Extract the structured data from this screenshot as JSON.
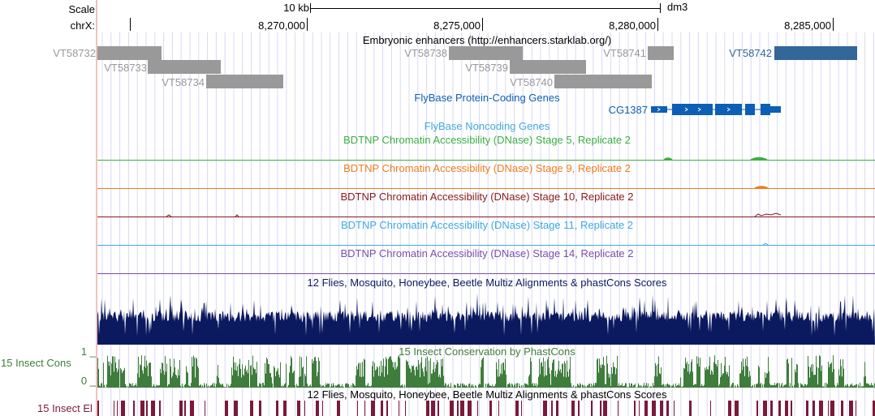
{
  "ruler": {
    "scale_label": "Scale",
    "scale_value": "10 kb",
    "assembly": "dm3",
    "chrom_label": "chrX:",
    "positions": [
      "8,270,000",
      "8,275,000",
      "8,280,000",
      "8,285,000"
    ]
  },
  "tracks": {
    "enhancers": {
      "title": "Embryonic enhancers (http://enhancers.starklab.org/)",
      "items": [
        "VT58732",
        "VT58733",
        "VT58734",
        "VT58738",
        "VT58739",
        "VT58740",
        "VT58741",
        "VT58742"
      ]
    },
    "protein_genes": {
      "title": "FlyBase Protein-Coding Genes",
      "gene": "CG1387"
    },
    "noncoding_genes": {
      "title": "FlyBase Noncoding Genes"
    },
    "dnase": [
      {
        "title": "BDTNP Chromatin Accessibility (DNase) Stage 5, Replicate 2",
        "color": "#3cb043"
      },
      {
        "title": "BDTNP Chromatin Accessibility (DNase) Stage 9, Replicate 2",
        "color": "#f07c1e"
      },
      {
        "title": "BDTNP Chromatin Accessibility (DNase) Stage 10, Replicate 2",
        "color": "#8b1a1a"
      },
      {
        "title": "BDTNP Chromatin Accessibility (DNase) Stage 11, Replicate 2",
        "color": "#3fa9dc"
      },
      {
        "title": "BDTNP Chromatin Accessibility (DNase) Stage 14, Replicate 2",
        "color": "#7a4fa8"
      }
    ],
    "multiz": {
      "title": "12 Flies, Mosquito, Honeybee, Beetle Multiz Alignments & phastCons Scores"
    },
    "cons": {
      "title": "15 Insect Conservation by PhastCons",
      "side_label": "15 Insect Cons",
      "ymax_label": "1 _",
      "ymin_label": "0 _"
    },
    "elements": {
      "title": "12 Flies, Mosquito, Honeybee, Beetle Multiz Alignments & phastCons Scores",
      "side_label": "15 Insect El"
    }
  },
  "colors": {
    "enhancer_gray": "#999999",
    "enhancer_selected": "#336699",
    "gene_blue": "#0c5fb4",
    "multiz_navy": "#0b1a5f",
    "cons_green": "#3e7d3c",
    "elements_maroon": "#7a1a3a",
    "grid": "#d8d8f4"
  }
}
